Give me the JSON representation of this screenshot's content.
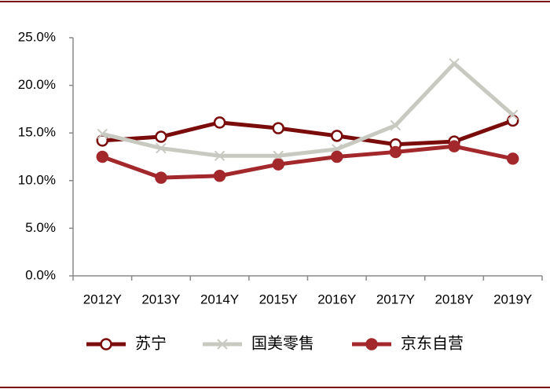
{
  "chart_data": {
    "type": "line",
    "categories": [
      "2012Y",
      "2013Y",
      "2014Y",
      "2015Y",
      "2016Y",
      "2017Y",
      "2018Y",
      "2019Y"
    ],
    "series": [
      {
        "name": "苏宁",
        "color": "#7b0c0c",
        "marker": "circle-open",
        "values": [
          14.2,
          14.6,
          16.1,
          15.5,
          14.7,
          13.8,
          14.1,
          16.3
        ]
      },
      {
        "name": "国美零售",
        "color": "#c8c9c0",
        "marker": "x",
        "values": [
          14.9,
          13.4,
          12.6,
          12.6,
          13.3,
          15.8,
          22.3,
          16.9
        ]
      },
      {
        "name": "京东自营",
        "color": "#a3282c",
        "marker": "circle",
        "values": [
          12.5,
          10.3,
          10.5,
          11.7,
          12.5,
          13.0,
          13.6,
          12.3
        ]
      }
    ],
    "ylim": [
      0,
      25
    ],
    "yticks": [
      {
        "value": 0,
        "label": "0.0%"
      },
      {
        "value": 5,
        "label": "5.0%"
      },
      {
        "value": 10,
        "label": "10.0%"
      },
      {
        "value": 15,
        "label": "15.0%"
      },
      {
        "value": 20,
        "label": "20.0%"
      },
      {
        "value": 25,
        "label": "25.0%"
      }
    ],
    "grid": false,
    "legend": "bottom"
  }
}
